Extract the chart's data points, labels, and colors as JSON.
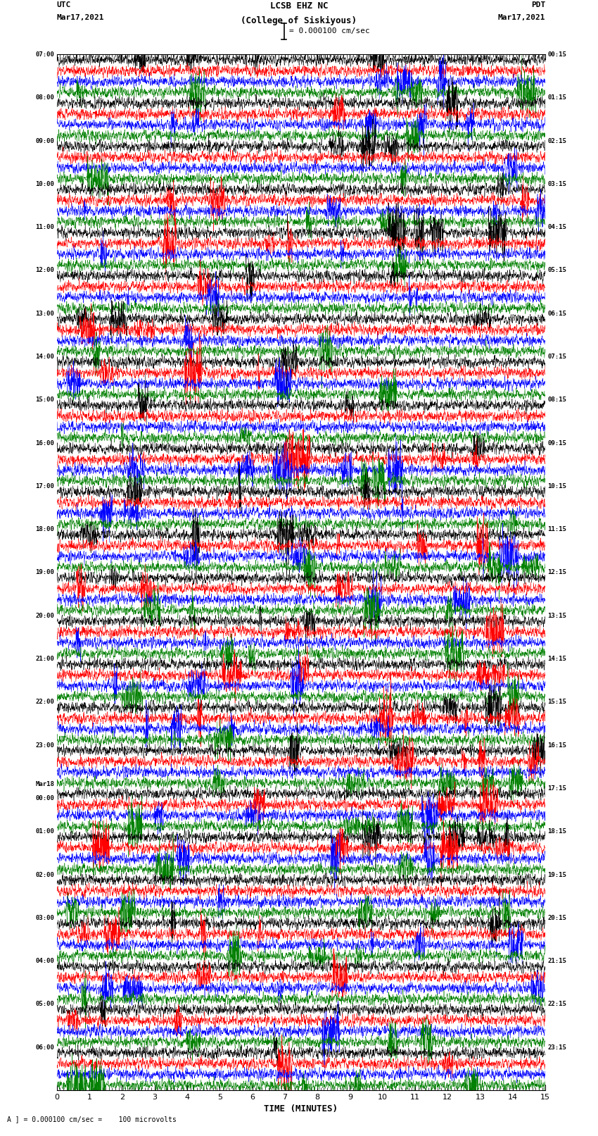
{
  "title_line1": "LCSB EHZ NC",
  "title_line2": "(College of Siskiyous)",
  "scale_text": "I = 0.000100 cm/sec",
  "left_label_top": "UTC",
  "left_label_date": "Mar17,2021",
  "right_label_top": "PDT",
  "right_label_date": "Mar17,2021",
  "bottom_label": "TIME (MINUTES)",
  "scale_note": "A ] = 0.000100 cm/sec =    100 microvolts",
  "left_times": [
    "07:00",
    "08:00",
    "09:00",
    "10:00",
    "11:00",
    "12:00",
    "13:00",
    "14:00",
    "15:00",
    "16:00",
    "17:00",
    "18:00",
    "19:00",
    "20:00",
    "21:00",
    "22:00",
    "23:00",
    "Mar18",
    "01:00",
    "02:00",
    "03:00",
    "04:00",
    "05:00",
    "06:00"
  ],
  "left_times_extra": [
    "",
    "",
    "",
    "",
    "",
    "",
    "",
    "",
    "",
    "",
    "",
    "",
    "",
    "",
    "",
    "",
    "",
    "00:00",
    "",
    "",
    "",
    "",
    "",
    ""
  ],
  "right_times": [
    "00:15",
    "01:15",
    "02:15",
    "03:15",
    "04:15",
    "05:15",
    "06:15",
    "07:15",
    "08:15",
    "09:15",
    "10:15",
    "11:15",
    "12:15",
    "13:15",
    "14:15",
    "15:15",
    "16:15",
    "17:15",
    "18:15",
    "19:15",
    "20:15",
    "21:15",
    "22:15",
    "23:15"
  ],
  "num_rows": 24,
  "traces_per_row": 4,
  "trace_colors": [
    "black",
    "red",
    "blue",
    "green"
  ],
  "fig_width": 8.5,
  "fig_height": 16.13,
  "bg_color": "white",
  "xlim": [
    0,
    15
  ],
  "xticks": [
    0,
    1,
    2,
    3,
    4,
    5,
    6,
    7,
    8,
    9,
    10,
    11,
    12,
    13,
    14,
    15
  ],
  "seed": 42
}
